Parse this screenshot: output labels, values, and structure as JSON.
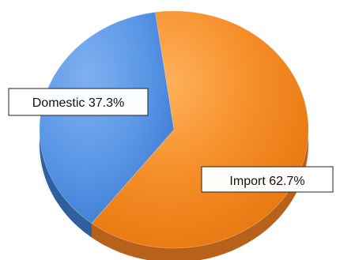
{
  "chart_data": {
    "type": "pie",
    "title": "",
    "legend": "none",
    "slices": [
      {
        "label": "Import",
        "value": 62.7,
        "display": "Import 62.7%",
        "color": "#f28e2c",
        "side_color": "#b8611a"
      },
      {
        "label": "Domestic",
        "value": 37.3,
        "display": "Domestic 37.3%",
        "color": "#4f8fdf",
        "side_color": "#2f5f9f"
      }
    ]
  }
}
